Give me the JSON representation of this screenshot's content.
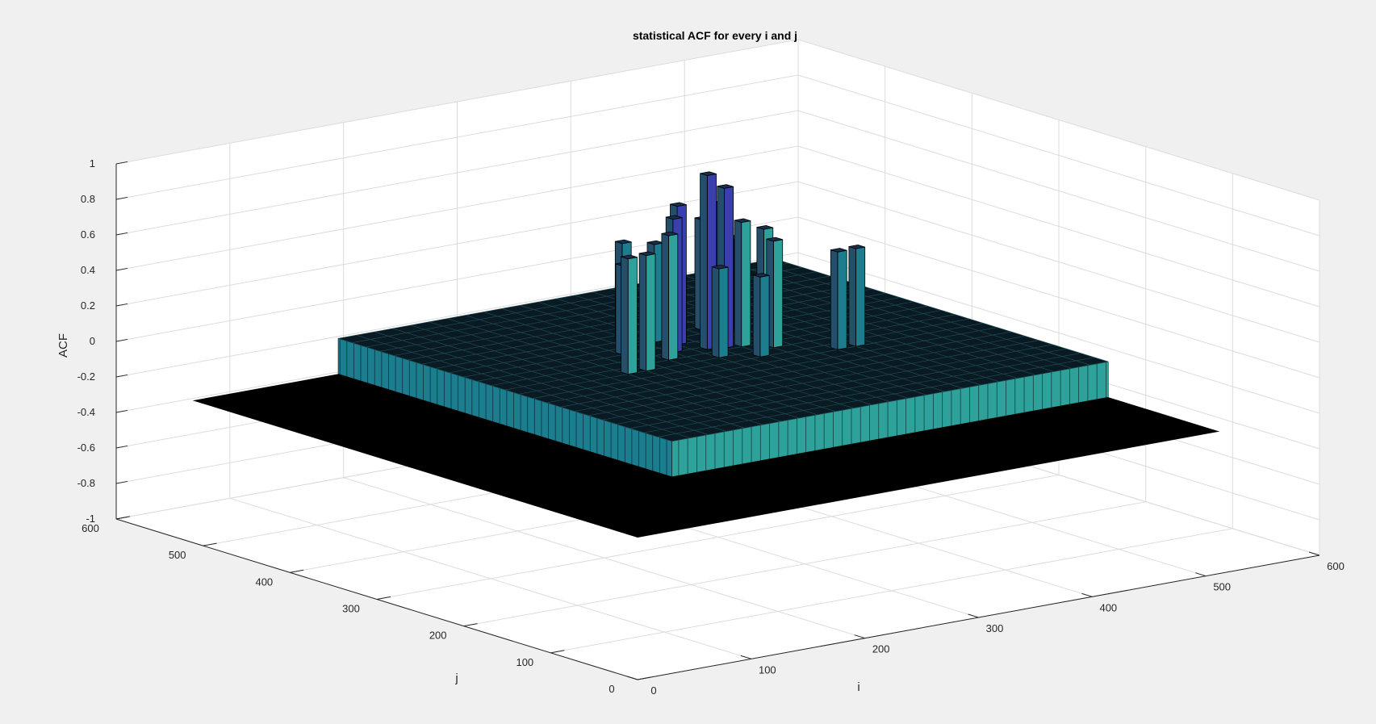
{
  "chart_data": {
    "type": "surface3d",
    "title": "statistical ACF for every i and j",
    "xlabel": "i",
    "ylabel": "j",
    "zlabel": "ACF",
    "xlim": [
      0,
      600
    ],
    "ylim": [
      0,
      600
    ],
    "zlim": [
      -1,
      1
    ],
    "x_ticks": [
      "0",
      "100",
      "200",
      "300",
      "400",
      "500",
      "600"
    ],
    "y_ticks": [
      "0",
      "100",
      "200",
      "300",
      "400",
      "500",
      "600"
    ],
    "z_ticks": [
      "-1",
      "-0.8",
      "-0.6",
      "-0.4",
      "-0.2",
      "0",
      "0.2",
      "0.4",
      "0.6",
      "0.8",
      "1"
    ],
    "surface_extent": {
      "i": [
        0,
        512
      ],
      "j": [
        0,
        512
      ]
    },
    "base_level": -0.2,
    "plateau_level": 0.0,
    "plateau_extent": {
      "i": [
        128,
        512
      ],
      "j": [
        128,
        512
      ]
    },
    "peak_value": 0.98,
    "peak_location": {
      "i": 320,
      "j": 320
    },
    "grid": true,
    "colormap": "parula",
    "colors": {
      "base": "#000000",
      "bar_edge": "#000000",
      "face_low": "#1b7d8e",
      "face_mid": "#2ea19a",
      "face_high": "#3a3fb0"
    }
  }
}
